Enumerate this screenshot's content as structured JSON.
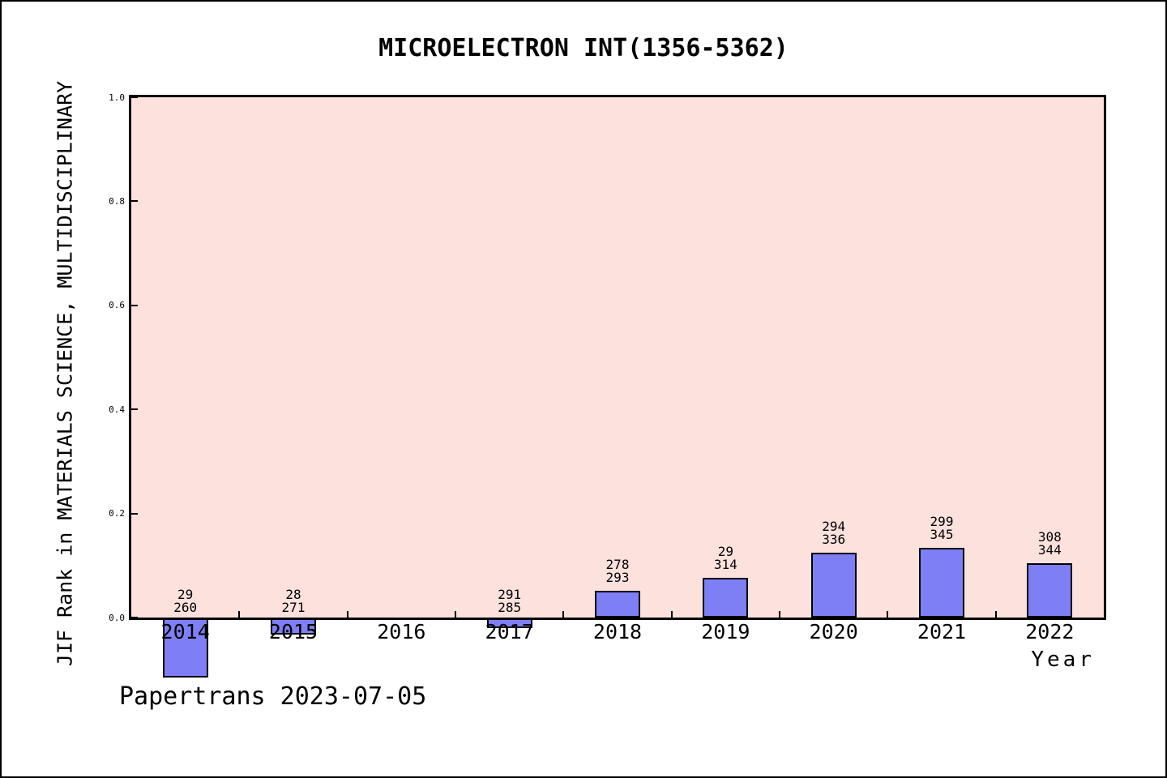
{
  "window": {
    "background": "#ffffff",
    "border_color": "#000000"
  },
  "chart_data": {
    "type": "bar",
    "title": "MICROELECTRON INT(1356-5362)",
    "xlabel": "Year",
    "ylabel": "JIF Rank in MATERIALS SCIENCE, MULTIDISCIPLINARY",
    "categories": [
      "2014",
      "2015",
      "2016",
      "2017",
      "2018",
      "2019",
      "2020",
      "2021",
      "2022"
    ],
    "values": [
      -0.115,
      -0.032,
      0,
      -0.021,
      0.052,
      0.077,
      0.125,
      0.134,
      0.105
    ],
    "bar_labels": [
      [
        "29",
        "260"
      ],
      [
        "28",
        "271"
      ],
      [],
      [
        "291",
        "285"
      ],
      [
        "278",
        "293"
      ],
      [
        "29",
        "314"
      ],
      [
        "294",
        "336"
      ],
      [
        "299",
        "345"
      ],
      [
        "308",
        "344"
      ]
    ],
    "ylim": [
      0,
      1
    ],
    "yticks": [
      {
        "label": "0.0",
        "value": 0.0
      },
      {
        "label": "0.2",
        "value": 0.2
      },
      {
        "label": "0.4",
        "value": 0.4
      },
      {
        "label": "0.6",
        "value": 0.6
      },
      {
        "label": "0.8",
        "value": 0.8
      },
      {
        "label": "1.0",
        "value": 1.0
      }
    ],
    "grid": false,
    "legend": null,
    "colors": {
      "plot_background": "#fce1dd",
      "bar_fill": "#7f7ff5",
      "bar_edge": "#000000",
      "axis": "#000000",
      "text": "#000000"
    }
  },
  "footer": {
    "watermark": "Papertrans 2023-07-05"
  }
}
